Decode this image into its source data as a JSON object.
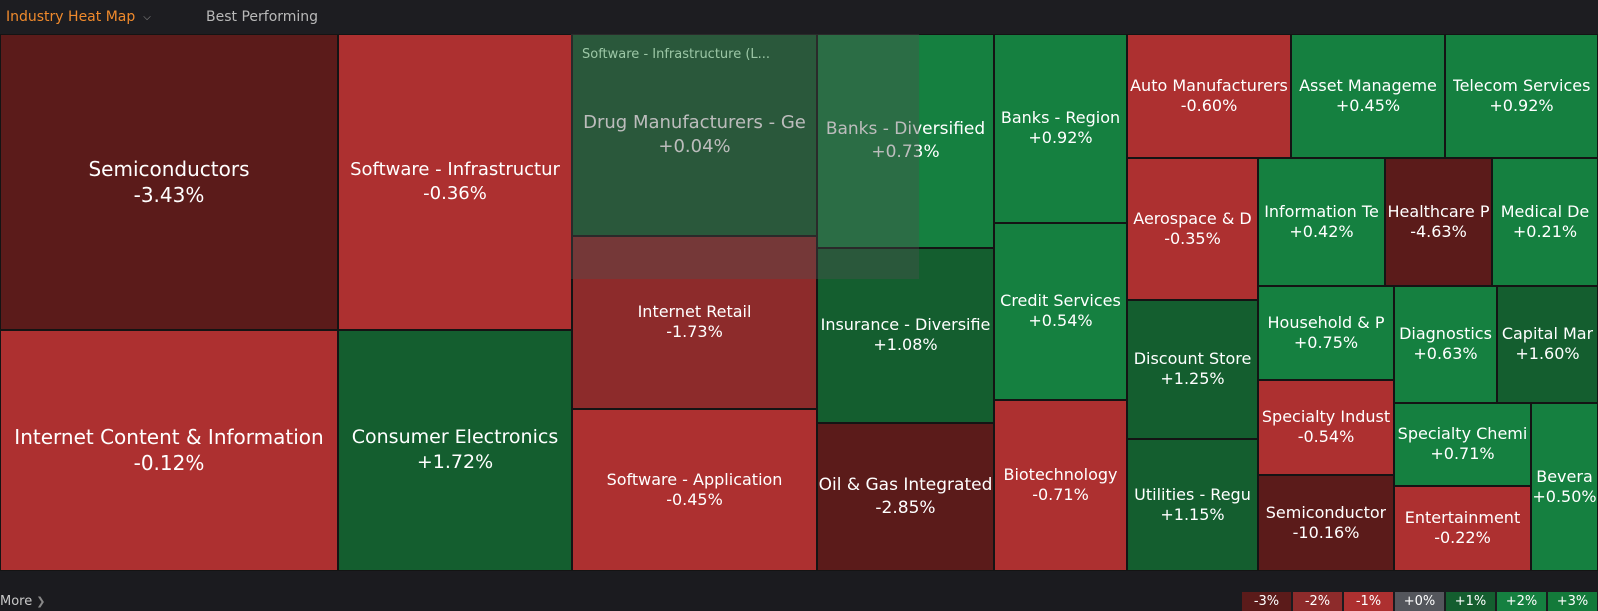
{
  "header": {
    "active_tab": "Industry Heat Map",
    "tab2": "Best Performing"
  },
  "colors": {
    "deep_red": "#5b1b1a",
    "red": "#ad3030",
    "mid_red": "#8d2b2b",
    "dark_green": "#145e2f",
    "green": "#158040",
    "accent": "#f08a2c"
  },
  "tiles": [
    {
      "name": "Semiconductors",
      "change": "-3.43%"
    },
    {
      "name": "Internet Content & Information",
      "change": "-0.12%"
    },
    {
      "name": "Software - Infrastructur",
      "change": "-0.36%"
    },
    {
      "name": "Consumer Electronics",
      "change": "+1.72%"
    },
    {
      "name": "Drug Manufacturers - Ge",
      "change": "+0.04%"
    },
    {
      "name": "Internet Retail",
      "change": "-1.73%"
    },
    {
      "name": "Software - Application",
      "change": "-0.45%"
    },
    {
      "name": "Banks - Diversified",
      "change": "+0.73%"
    },
    {
      "name": "Insurance - Diversifie",
      "change": "+1.08%"
    },
    {
      "name": "Oil & Gas Integrated",
      "change": "-2.85%"
    },
    {
      "name": "Banks - Region",
      "change": "+0.92%"
    },
    {
      "name": "Credit Services",
      "change": "+0.54%"
    },
    {
      "name": "Biotechnology",
      "change": "-0.71%"
    },
    {
      "name": "Auto Manufacturers",
      "change": "-0.60%"
    },
    {
      "name": "Asset Manageme",
      "change": "+0.45%"
    },
    {
      "name": "Telecom Services",
      "change": "+0.92%"
    },
    {
      "name": "Aerospace & D",
      "change": "-0.35%"
    },
    {
      "name": "Information Te",
      "change": "+0.42%"
    },
    {
      "name": "Healthcare P",
      "change": "-4.63%"
    },
    {
      "name": "Medical De",
      "change": "+0.21%"
    },
    {
      "name": "Discount Store",
      "change": "+1.25%"
    },
    {
      "name": "Household & P",
      "change": "+0.75%"
    },
    {
      "name": "Diagnostics",
      "change": "+0.63%"
    },
    {
      "name": "Capital Mar",
      "change": "+1.60%"
    },
    {
      "name": "Specialty Indust",
      "change": "-0.54%"
    },
    {
      "name": "Specialty Chemi",
      "change": "+0.71%"
    },
    {
      "name": "Utilities - Regu",
      "change": "+1.15%"
    },
    {
      "name": "Semiconductor",
      "change": "-10.16%"
    },
    {
      "name": "Entertainment",
      "change": "-0.22%"
    },
    {
      "name": "Bevera",
      "change": "+0.50%"
    }
  ],
  "hover_tooltip": "Software - Infrastructure  (L...",
  "footer": {
    "more_label": "More",
    "legend": [
      {
        "label": "-3%",
        "color": "#5b1b1a"
      },
      {
        "label": "-2%",
        "color": "#8d2b2b"
      },
      {
        "label": "-1%",
        "color": "#ad3030"
      },
      {
        "label": "+0%",
        "color": "#54565c"
      },
      {
        "label": "+1%",
        "color": "#145e2f"
      },
      {
        "label": "+2%",
        "color": "#158040"
      },
      {
        "label": "+3%",
        "color": "#137a3a"
      }
    ]
  }
}
